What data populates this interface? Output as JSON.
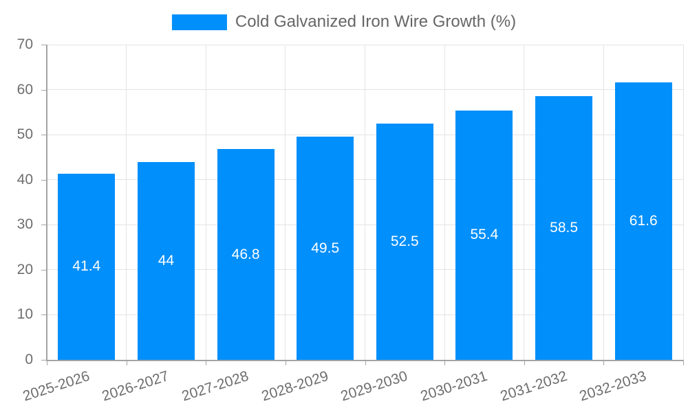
{
  "chart_data": {
    "type": "bar",
    "title": "Cold Galvanized Iron Wire Growth (%)",
    "categories": [
      "2025-2026",
      "2026-2027",
      "2027-2028",
      "2028-2029",
      "2029-2030",
      "2030-2031",
      "2031-2032",
      "2032-2033"
    ],
    "values": [
      41.4,
      44,
      46.8,
      49.5,
      52.5,
      55.4,
      58.5,
      61.6
    ],
    "value_labels": [
      "41.4",
      "44",
      "46.8",
      "49.5",
      "52.5",
      "55.4",
      "58.5",
      "61.6"
    ],
    "xlabel": "",
    "ylabel": "",
    "ylim": [
      0,
      70
    ],
    "yticks": [
      0,
      10,
      20,
      30,
      40,
      50,
      60,
      70
    ],
    "grid": true,
    "x_label_rotation_deg": -18,
    "legend": {
      "position": "top",
      "label": "Cold Galvanized Iron Wire Growth (%)"
    },
    "colors": {
      "bar": "#008FFB",
      "value_label": "#FFFFFF",
      "grid": "#E3E3E3",
      "axis": "#A3A3A3",
      "tick_text": "#6E6E6E",
      "title_text": "#666666",
      "background": "#FFFFFF"
    }
  }
}
